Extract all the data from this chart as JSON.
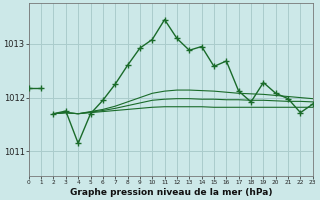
{
  "background_color": "#cce8e8",
  "grid_color": "#aacccc",
  "line_color": "#1a6b2a",
  "xlabel": "Graphe pression niveau de la mer (hPa)",
  "ylabel_values": [
    1011,
    1012,
    1013
  ],
  "xmin": 0,
  "xmax": 23,
  "ymin": 1010.55,
  "ymax": 1013.75,
  "figsize": [
    3.2,
    2.0
  ],
  "dpi": 100,
  "short_line": {
    "x": [
      0,
      1
    ],
    "y": [
      1012.18,
      1012.18
    ]
  },
  "main_line": {
    "x": [
      2,
      3,
      4,
      5,
      6,
      7,
      8,
      9,
      10,
      11,
      12,
      13,
      14,
      15,
      16,
      17,
      18,
      19,
      20,
      21,
      22,
      23
    ],
    "y": [
      1011.7,
      1011.75,
      1011.15,
      1011.7,
      1011.95,
      1012.25,
      1012.6,
      1012.92,
      1013.08,
      1013.45,
      1013.1,
      1012.88,
      1012.95,
      1012.58,
      1012.68,
      1012.12,
      1011.92,
      1012.28,
      1012.08,
      1011.98,
      1011.72,
      1011.88
    ]
  },
  "flat_line1": {
    "x": [
      2,
      3,
      4,
      5,
      6,
      7,
      8,
      9,
      10,
      11,
      12,
      13,
      14,
      15,
      16,
      17,
      18,
      19,
      20,
      21,
      22,
      23
    ],
    "y": [
      1011.7,
      1011.72,
      1011.7,
      1011.72,
      1011.74,
      1011.76,
      1011.78,
      1011.8,
      1011.82,
      1011.83,
      1011.83,
      1011.83,
      1011.83,
      1011.82,
      1011.82,
      1011.82,
      1011.82,
      1011.82,
      1011.82,
      1011.82,
      1011.82,
      1011.82
    ]
  },
  "flat_line2": {
    "x": [
      2,
      3,
      4,
      5,
      6,
      7,
      8,
      9,
      10,
      11,
      12,
      13,
      14,
      15,
      16,
      17,
      18,
      19,
      20,
      21,
      22,
      23
    ],
    "y": [
      1011.7,
      1011.72,
      1011.7,
      1011.73,
      1011.76,
      1011.8,
      1011.85,
      1011.9,
      1011.95,
      1011.97,
      1011.98,
      1011.98,
      1011.97,
      1011.97,
      1011.96,
      1011.96,
      1011.95,
      1011.95,
      1011.94,
      1011.93,
      1011.93,
      1011.92
    ]
  },
  "flat_line3": {
    "x": [
      2,
      3,
      4,
      5,
      6,
      7,
      8,
      9,
      10,
      11,
      12,
      13,
      14,
      15,
      16,
      17,
      18,
      19,
      20,
      21,
      22,
      23
    ],
    "y": [
      1011.7,
      1011.72,
      1011.7,
      1011.74,
      1011.78,
      1011.84,
      1011.92,
      1012.0,
      1012.08,
      1012.12,
      1012.14,
      1012.14,
      1012.13,
      1012.12,
      1012.1,
      1012.08,
      1012.07,
      1012.06,
      1012.04,
      1012.02,
      1012.0,
      1011.98
    ]
  }
}
